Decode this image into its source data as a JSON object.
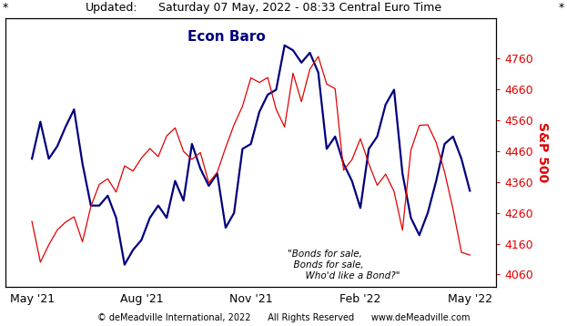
{
  "chart_data": {
    "type": "line",
    "title": "Econ Baro",
    "y2label": "S&P 500",
    "annotations": [
      "*",
      "Updated:",
      "Saturday 07 May, 2022 - 08:33 Central Euro Time",
      "*",
      "\"Bonds for sale,\n  Bonds for sale,\n      Who'd like a Bond?\"",
      "© deMeadville International, 2022      All Rights Reserved      www.deMeadville.com"
    ],
    "categories": [
      "May '21",
      null,
      null,
      null,
      null,
      null,
      null,
      null,
      null,
      null,
      null,
      null,
      null,
      "Aug '21",
      null,
      null,
      null,
      null,
      null,
      null,
      null,
      null,
      null,
      null,
      null,
      null,
      "Nov '21",
      null,
      null,
      null,
      null,
      null,
      null,
      null,
      null,
      null,
      null,
      null,
      null,
      "Feb '22",
      null,
      null,
      null,
      null,
      null,
      null,
      null,
      null,
      null,
      null,
      null,
      null,
      "May '22"
    ],
    "series": [
      {
        "color": "#00007f",
        "values": [
          50,
          65,
          50,
          55,
          63,
          70,
          48,
          31,
          31,
          35,
          26,
          7,
          13,
          17,
          26,
          31,
          26,
          41,
          33,
          56,
          46,
          39,
          44,
          22,
          28,
          54,
          56,
          69,
          76,
          78,
          96,
          94,
          89,
          93,
          85,
          54,
          59,
          48,
          41,
          30,
          54,
          59,
          72,
          78,
          44,
          26,
          19,
          28,
          41,
          56,
          59,
          50,
          37
        ]
      },
      {
        "color": "#e00000",
        "axis": "y2",
        "values": [
          4232,
          4100,
          4156,
          4204,
          4230,
          4247,
          4166,
          4281,
          4352,
          4370,
          4327,
          4412,
          4395,
          4437,
          4468,
          4442,
          4509,
          4535,
          4459,
          4433,
          4455,
          4357,
          4391,
          4471,
          4545,
          4605,
          4697,
          4682,
          4698,
          4595,
          4538,
          4712,
          4620,
          4725,
          4766,
          4677,
          4662,
          4398,
          4432,
          4500,
          4419,
          4349,
          4385,
          4329,
          4204,
          4463,
          4543,
          4545,
          4488,
          4392,
          4272,
          4132,
          4123
        ]
      }
    ],
    "ylim": [
      -2,
      107
    ],
    "yticks": [],
    "y2lim": [
      4020,
      4890
    ],
    "y2ticks": [
      4060,
      4160,
      4260,
      4360,
      4460,
      4560,
      4660,
      4760
    ]
  }
}
